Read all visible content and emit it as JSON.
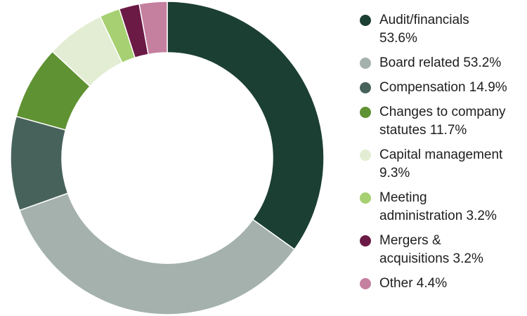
{
  "chart_data": {
    "type": "pie",
    "variant": "donut",
    "title": "",
    "legend_position": "right",
    "categories": [
      "Audit/financials",
      "Board related",
      "Compensation",
      "Changes to company statutes",
      "Capital management",
      "Meeting administration",
      "Mergers & acquisitions",
      "Other"
    ],
    "values": [
      53.6,
      53.2,
      14.9,
      11.7,
      9.3,
      3.2,
      3.2,
      4.4
    ],
    "colors": [
      "#1b3f33",
      "#a4b1ac",
      "#47625a",
      "#5f9232",
      "#e3edd3",
      "#a6d071",
      "#6b1a46",
      "#c57f9f"
    ],
    "legend": [
      {
        "label": "Audit/financials",
        "line1": "Audit/financials",
        "line2": "53.6%"
      },
      {
        "label": "Board related",
        "line1": "Board related 53.2%",
        "line2": ""
      },
      {
        "label": "Compensation",
        "line1": "Compensation 14.9%",
        "line2": ""
      },
      {
        "label": "Changes to company statutes",
        "line1": "Changes to company",
        "line2": "statutes 11.7%"
      },
      {
        "label": "Capital management",
        "line1": "Capital management",
        "line2": "9.3%"
      },
      {
        "label": "Meeting administration",
        "line1": "Meeting",
        "line2": "administration 3.2%"
      },
      {
        "label": "Mergers & acquisitions",
        "line1": "Mergers &",
        "line2": "acquisitions 3.2%"
      },
      {
        "label": "Other",
        "line1": "Other 4.4%",
        "line2": ""
      }
    ]
  }
}
